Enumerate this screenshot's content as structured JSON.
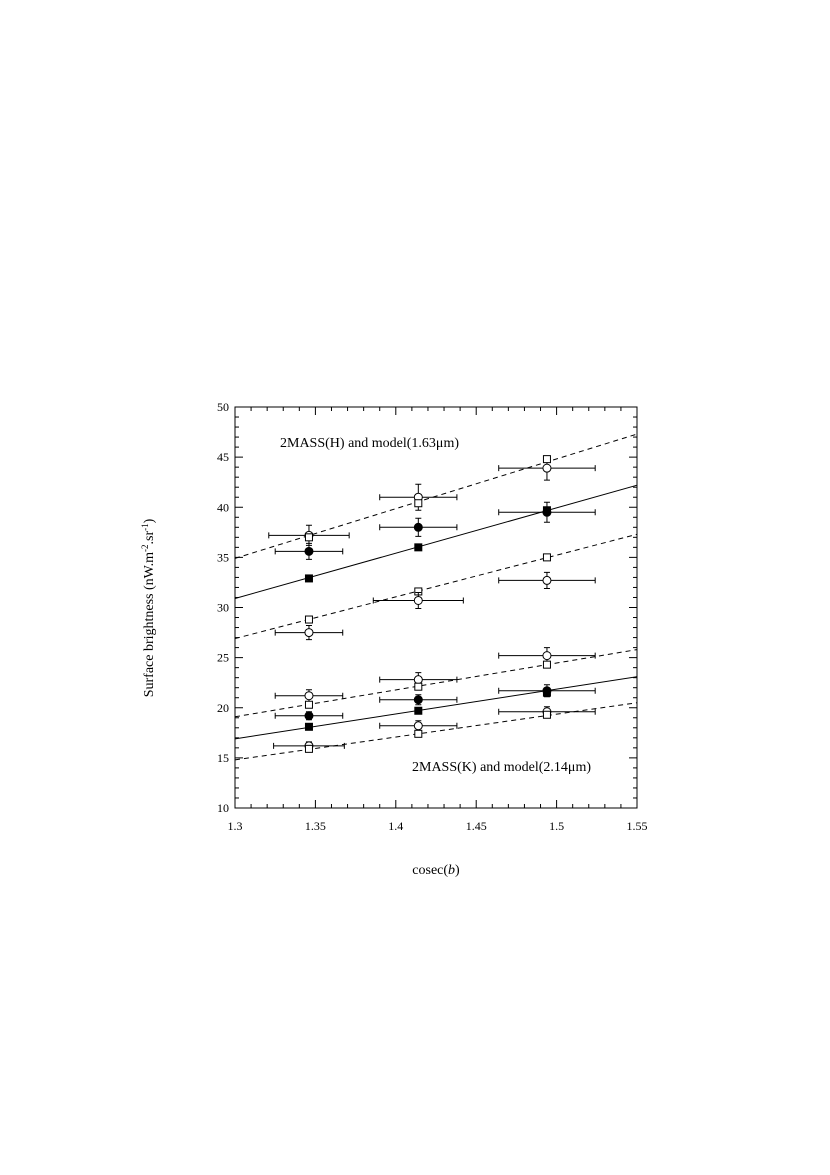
{
  "chart_data": {
    "type": "scatter",
    "xlabel": [
      "cosec(",
      "b",
      ")"
    ],
    "ylabel": [
      "Surface brightness (nW.m",
      "-2",
      ".sr",
      "-1",
      ")"
    ],
    "annotations": [
      "2MASS(H) and model(1.63μm)",
      "2MASS(K) and model(2.14μm)"
    ],
    "xlim": [
      1.3,
      1.55
    ],
    "ylim": [
      10,
      50
    ],
    "xticks": [
      1.3,
      1.35,
      1.4,
      1.45,
      1.5,
      1.55
    ],
    "yticks": [
      10,
      15,
      20,
      25,
      30,
      35,
      40,
      45,
      50
    ],
    "color": "#000000",
    "series": [
      {
        "marker": "circle",
        "filled": false,
        "x": [
          1.346,
          1.414,
          1.494
        ],
        "values": [
          37.2,
          41.0,
          43.9
        ],
        "xerr": [
          0.025,
          0.024,
          0.03
        ],
        "yerr": [
          1.0,
          1.3,
          1.2
        ]
      },
      {
        "marker": "square",
        "filled": false,
        "x": [
          1.346,
          1.414,
          1.494
        ],
        "values": [
          37.0,
          40.4,
          44.8
        ]
      },
      {
        "marker": "circle",
        "filled": true,
        "x": [
          1.346,
          1.414,
          1.494
        ],
        "values": [
          35.6,
          38.0,
          39.5
        ],
        "xerr": [
          0.021,
          0.024,
          0.03
        ],
        "yerr": [
          0.8,
          0.9,
          1.0
        ]
      },
      {
        "marker": "square",
        "filled": true,
        "x": [
          1.346,
          1.414,
          1.494
        ],
        "values": [
          32.9,
          36.0,
          39.7
        ]
      },
      {
        "marker": "square",
        "filled": false,
        "x": [
          1.346,
          1.414,
          1.494
        ],
        "values": [
          28.8,
          31.6,
          35.0
        ]
      },
      {
        "marker": "circle",
        "filled": false,
        "x": [
          1.346,
          1.414,
          1.494
        ],
        "values": [
          27.5,
          30.7,
          32.7
        ],
        "xerr": [
          0.021,
          0.028,
          0.03
        ],
        "yerr": [
          0.7,
          0.8,
          0.8
        ]
      },
      {
        "marker": "circle",
        "filled": false,
        "x": [
          1.346,
          1.414,
          1.494
        ],
        "values": [
          21.2,
          22.8,
          25.2
        ],
        "xerr": [
          0.021,
          0.024,
          0.03
        ],
        "yerr": [
          0.6,
          0.7,
          0.8
        ]
      },
      {
        "marker": "square",
        "filled": false,
        "x": [
          1.346,
          1.414,
          1.494
        ],
        "values": [
          20.3,
          22.1,
          24.3
        ]
      },
      {
        "marker": "circle",
        "filled": true,
        "x": [
          1.346,
          1.414,
          1.494
        ],
        "values": [
          19.2,
          20.8,
          21.7
        ],
        "xerr": [
          0.021,
          0.024,
          0.03
        ],
        "yerr": [
          0.4,
          0.5,
          0.6
        ]
      },
      {
        "marker": "square",
        "filled": true,
        "x": [
          1.346,
          1.414,
          1.494
        ],
        "values": [
          18.1,
          19.7,
          21.5
        ]
      },
      {
        "marker": "circle",
        "filled": false,
        "x": [
          1.346,
          1.414,
          1.494
        ],
        "values": [
          16.2,
          18.2,
          19.6
        ],
        "xerr": [
          0.022,
          0.024,
          0.03
        ],
        "yerr": [
          0.4,
          0.5,
          0.5
        ]
      },
      {
        "marker": "square",
        "filled": false,
        "x": [
          1.346,
          1.414,
          1.494
        ],
        "values": [
          15.9,
          17.4,
          19.3
        ]
      }
    ],
    "lines": [
      {
        "style": "dashed",
        "x": [
          1.3,
          1.55
        ],
        "values": [
          34.9,
          47.3
        ]
      },
      {
        "style": "solid",
        "x": [
          1.3,
          1.55
        ],
        "values": [
          30.9,
          42.2
        ]
      },
      {
        "style": "dashed",
        "x": [
          1.3,
          1.55
        ],
        "values": [
          26.9,
          37.3
        ]
      },
      {
        "style": "dashed",
        "x": [
          1.3,
          1.55
        ],
        "values": [
          19.1,
          25.8
        ]
      },
      {
        "style": "solid",
        "x": [
          1.3,
          1.55
        ],
        "values": [
          16.9,
          23.1
        ]
      },
      {
        "style": "dashed",
        "x": [
          1.3,
          1.55
        ],
        "values": [
          14.8,
          20.5
        ]
      }
    ]
  }
}
